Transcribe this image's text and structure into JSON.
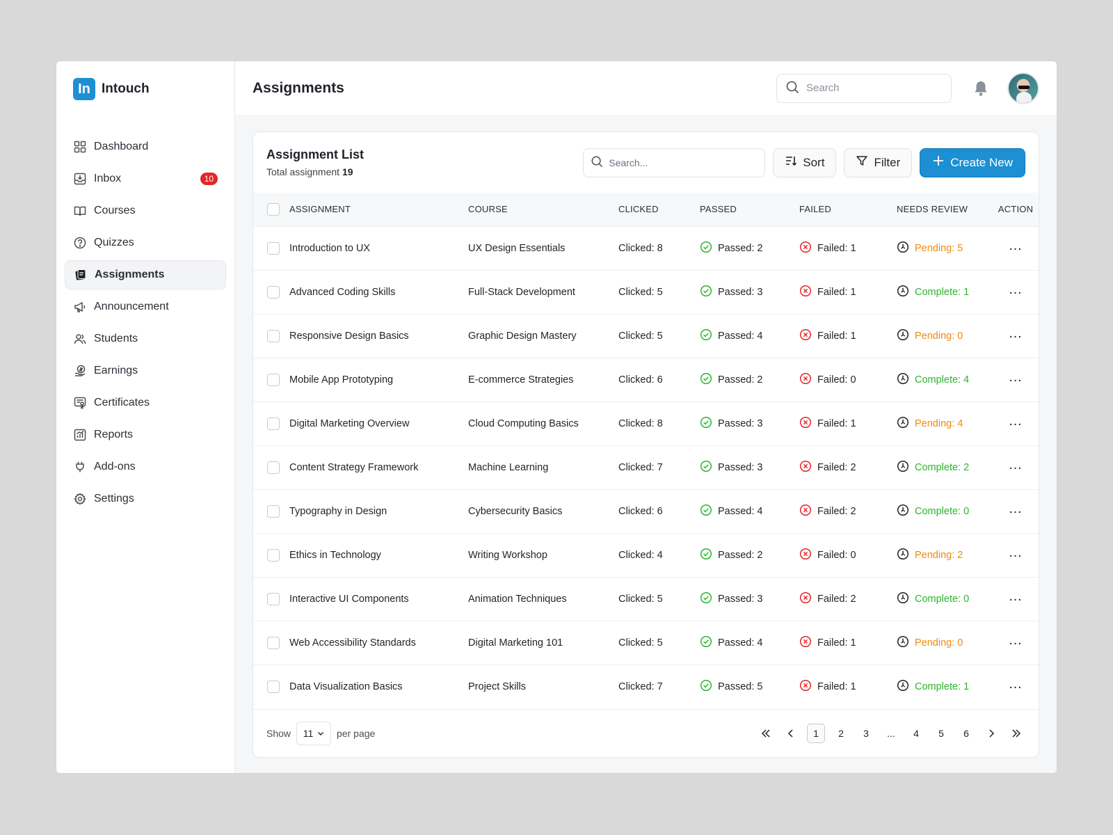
{
  "brand": {
    "logo_text": "In",
    "name": "Intouch",
    "logo_color": "#1d8fd3"
  },
  "sidebar": {
    "items": [
      {
        "label": "Dashboard",
        "icon": "grid-icon"
      },
      {
        "label": "Inbox",
        "icon": "inbox-icon",
        "badge": "10"
      },
      {
        "label": "Courses",
        "icon": "book-icon"
      },
      {
        "label": "Quizzes",
        "icon": "question-icon"
      },
      {
        "label": "Assignments",
        "icon": "assignment-icon",
        "active": true
      },
      {
        "label": "Announcement",
        "icon": "megaphone-icon"
      },
      {
        "label": "Students",
        "icon": "users-icon"
      },
      {
        "label": "Earnings",
        "icon": "coins-icon"
      },
      {
        "label": "Certificates",
        "icon": "certificate-icon"
      },
      {
        "label": "Reports",
        "icon": "chart-icon"
      },
      {
        "label": "Add-ons",
        "icon": "plug-icon"
      },
      {
        "label": "Settings",
        "icon": "gear-icon"
      }
    ]
  },
  "header": {
    "title": "Assignments",
    "search_placeholder": "Search"
  },
  "list": {
    "title": "Assignment List",
    "subtitle_prefix": "Total assignment",
    "total": "19",
    "search_placeholder": "Search...",
    "sort_label": "Sort",
    "filter_label": "Filter",
    "create_label": "Create New",
    "columns": [
      "ASSIGNMENT",
      "COURSE",
      "CLICKED",
      "PASSED",
      "FAILED",
      "NEEDS REVIEW",
      "ACTION"
    ],
    "rows": [
      {
        "assignment": "Introduction to UX",
        "course": "UX Design Essentials",
        "clicked": "Clicked: 8",
        "passed": "Passed: 2",
        "failed": "Failed: 1",
        "review": "Pending: 5",
        "review_status": "pending"
      },
      {
        "assignment": "Advanced Coding Skills",
        "course": "Full-Stack Development",
        "clicked": "Clicked: 5",
        "passed": "Passed: 3",
        "failed": "Failed: 1",
        "review": "Complete: 1",
        "review_status": "complete"
      },
      {
        "assignment": "Responsive Design Basics",
        "course": "Graphic Design Mastery",
        "clicked": "Clicked: 5",
        "passed": "Passed: 4",
        "failed": "Failed: 1",
        "review": "Pending: 0",
        "review_status": "pending"
      },
      {
        "assignment": "Mobile App Prototyping",
        "course": "E-commerce Strategies",
        "clicked": "Clicked: 6",
        "passed": "Passed: 2",
        "failed": "Failed: 0",
        "review": "Complete: 4",
        "review_status": "complete"
      },
      {
        "assignment": "Digital Marketing Overview",
        "course": "Cloud Computing Basics",
        "clicked": "Clicked: 8",
        "passed": "Passed: 3",
        "failed": "Failed: 1",
        "review": "Pending: 4",
        "review_status": "pending"
      },
      {
        "assignment": "Content Strategy Framework",
        "course": "Machine Learning",
        "clicked": "Clicked: 7",
        "passed": "Passed: 3",
        "failed": "Failed: 2",
        "review": "Complete: 2",
        "review_status": "complete"
      },
      {
        "assignment": "Typography in Design",
        "course": "Cybersecurity Basics",
        "clicked": "Clicked: 6",
        "passed": "Passed: 4",
        "failed": "Failed: 2",
        "review": "Complete: 0",
        "review_status": "complete"
      },
      {
        "assignment": "Ethics in Technology",
        "course": "Writing Workshop",
        "clicked": "Clicked: 4",
        "passed": "Passed: 2",
        "failed": "Failed: 0",
        "review": "Pending: 2",
        "review_status": "pending"
      },
      {
        "assignment": "Interactive UI Components",
        "course": "Animation Techniques",
        "clicked": "Clicked: 5",
        "passed": "Passed: 3",
        "failed": "Failed: 2",
        "review": "Complete: 0",
        "review_status": "complete"
      },
      {
        "assignment": "Web Accessibility Standards",
        "course": "Digital Marketing 101",
        "clicked": "Clicked: 5",
        "passed": "Passed: 4",
        "failed": "Failed: 1",
        "review": "Pending: 0",
        "review_status": "pending"
      },
      {
        "assignment": "Data Visualization Basics",
        "course": "Project Skills",
        "clicked": "Clicked: 7",
        "passed": "Passed: 5",
        "failed": "Failed: 1",
        "review": "Complete: 1",
        "review_status": "complete"
      }
    ]
  },
  "footer": {
    "show_label": "Show",
    "per_page_value": "11",
    "per_page_label": "per page",
    "pages": [
      "1",
      "2",
      "3",
      "...",
      "4",
      "5",
      "6"
    ],
    "current_page": "1"
  },
  "colors": {
    "accent": "#1d8fd3",
    "pending": "#f08a0b",
    "complete": "#2cb52c",
    "passed": "#2cb52c",
    "failed": "#e3262a",
    "badge": "#e3262a"
  }
}
